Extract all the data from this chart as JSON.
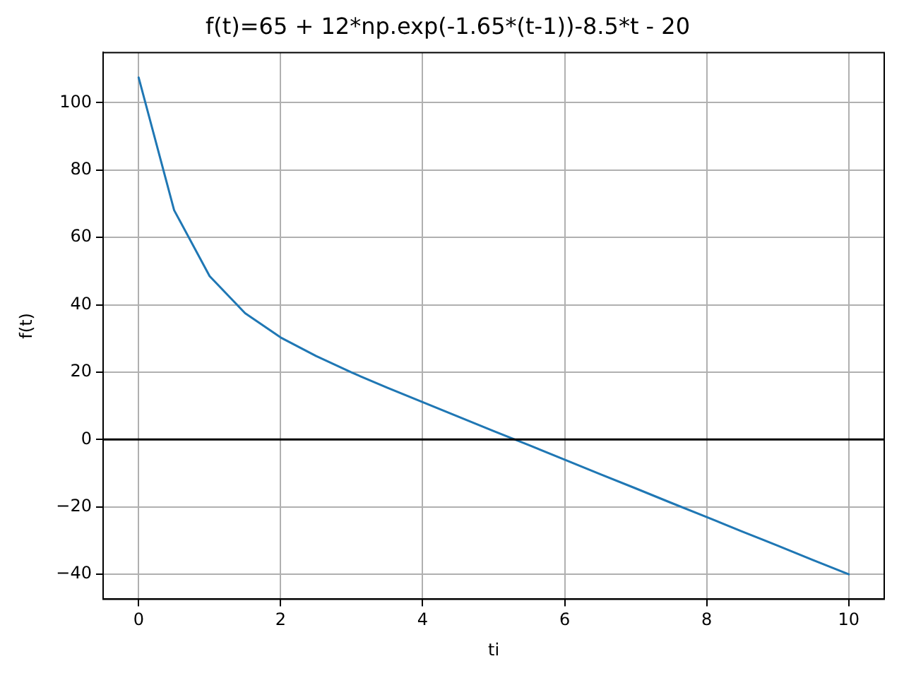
{
  "chart_data": {
    "type": "line",
    "title": "f(t)=65 + 12*np.exp(-1.65*(t-1))-8.5*t - 20",
    "xlabel": "ti",
    "ylabel": "f(t)",
    "x": [
      0,
      0.5,
      1,
      1.5,
      2,
      2.5,
      3,
      3.5,
      4,
      4.5,
      5,
      5.5,
      6,
      6.5,
      7,
      7.5,
      8,
      8.5,
      9,
      9.5,
      10
    ],
    "series": [
      {
        "color": "#1f77b4",
        "values": [
          107.5,
          68.1,
          48.5,
          37.5,
          30.3,
          24.8,
          19.9,
          15.4,
          11.1,
          6.8,
          2.5,
          -1.7,
          -6.0,
          -10.3,
          -14.5,
          -18.8,
          -23.0,
          -27.3,
          -31.5,
          -35.8,
          -40.0
        ]
      }
    ],
    "xlim": [
      -0.5,
      10.5
    ],
    "ylim": [
      -47.4,
      114.9
    ],
    "xticks": [
      0,
      2,
      4,
      6,
      8,
      10
    ],
    "yticks": [
      -40,
      -20,
      0,
      20,
      40,
      60,
      80,
      100
    ],
    "grid": true,
    "legend": false,
    "marker": "none",
    "line_style": "solid",
    "ref_lines": [
      {
        "axis": "y",
        "value": 0,
        "color": "#000000"
      }
    ]
  }
}
